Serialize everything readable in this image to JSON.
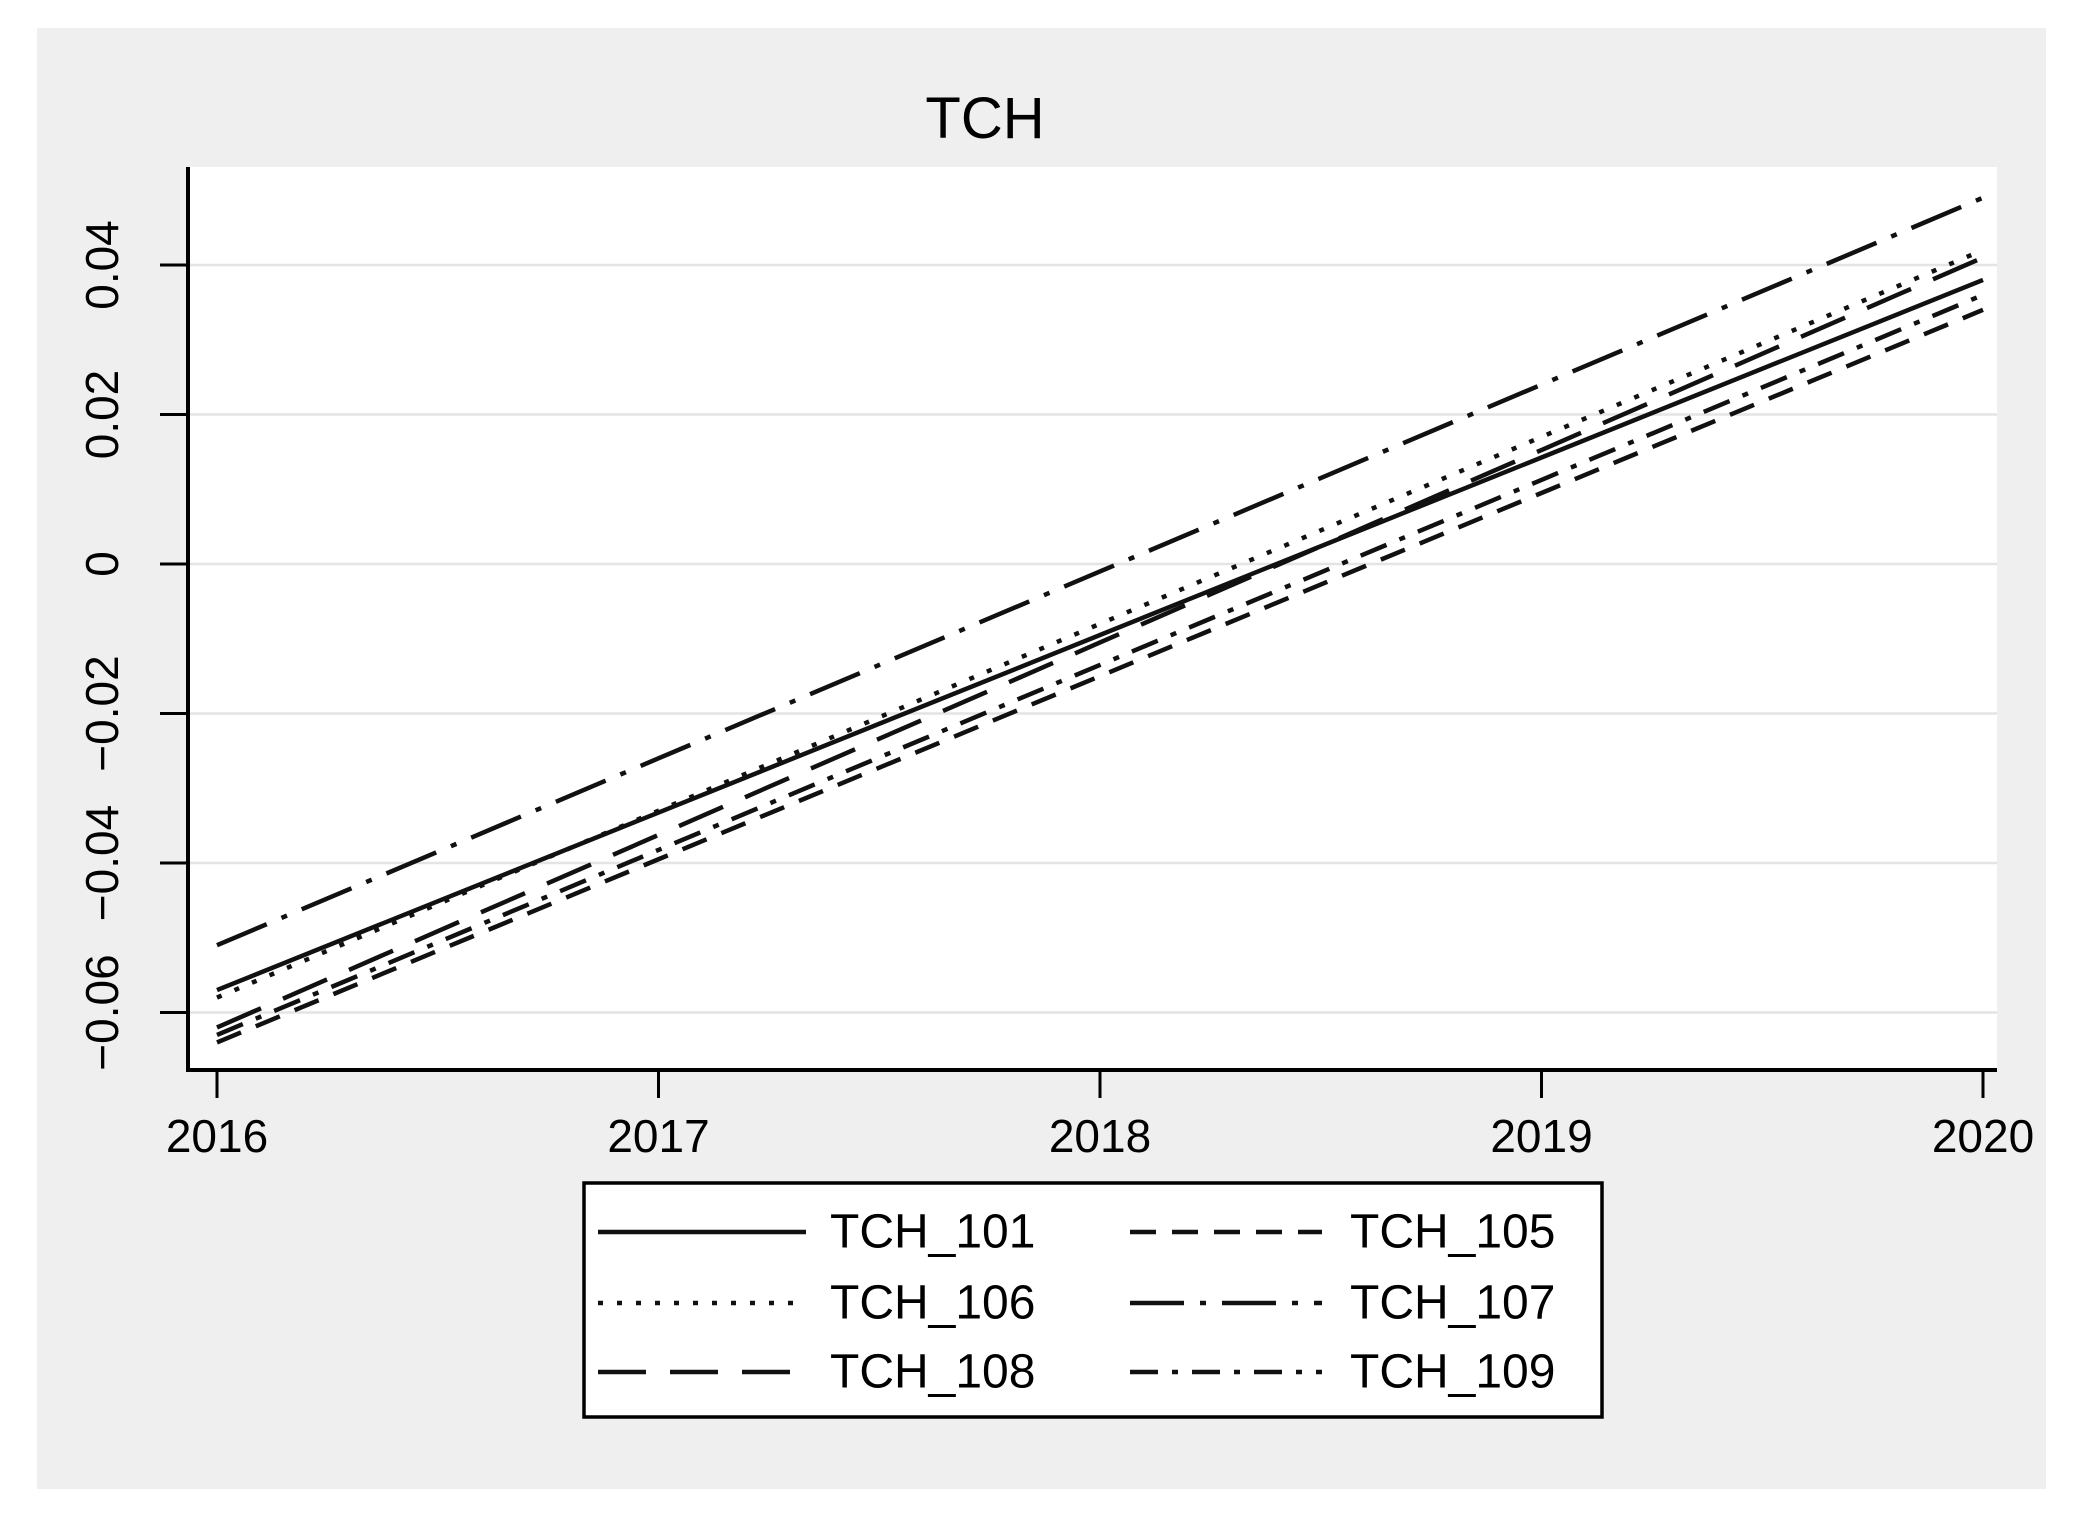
{
  "title": "TCH",
  "colors": {
    "canvas_bg": "#ffffff",
    "panel_bg": "#efefef",
    "plot_bg": "#ffffff",
    "gridline": "#e4e4e4",
    "axis": "#000000",
    "line": "#111111",
    "text": "#000000",
    "legend_bg": "#ffffff",
    "legend_border": "#000000"
  },
  "chart_data": {
    "type": "line",
    "title": "TCH",
    "xlabel": "",
    "ylabel": "",
    "x": [
      2016,
      2017,
      2018,
      2019,
      2020
    ],
    "x_tick_labels": [
      "2016",
      "2017",
      "2018",
      "2019",
      "2020"
    ],
    "xlim": [
      2016,
      2020
    ],
    "y_tick_values": [
      0.04,
      0.02,
      0,
      -0.02,
      -0.04,
      -0.06
    ],
    "y_tick_labels": [
      "0.04",
      "0.02",
      "0",
      "−0.02",
      "−0.04",
      "−0.06"
    ],
    "ylim": [
      -0.0677,
      0.0531
    ],
    "grid": "horizontal",
    "legend_position": "bottom",
    "series": [
      {
        "name": "TCH_101",
        "style": "solid",
        "values": [
          -0.057,
          -0.03325,
          -0.0095,
          0.01425,
          0.038
        ]
      },
      {
        "name": "TCH_105",
        "style": "dash",
        "values": [
          -0.064,
          -0.0395,
          -0.015,
          0.0095,
          0.034
        ]
      },
      {
        "name": "TCH_106",
        "style": "dot",
        "values": [
          -0.058,
          -0.033,
          -0.008,
          0.017,
          0.042
        ]
      },
      {
        "name": "TCH_107",
        "style": "longdash-dot",
        "values": [
          -0.051,
          -0.026,
          -0.001,
          0.024,
          0.049
        ]
      },
      {
        "name": "TCH_108",
        "style": "longdash",
        "values": [
          -0.062,
          -0.03625,
          -0.0105,
          0.01525,
          0.041
        ]
      },
      {
        "name": "TCH_109",
        "style": "dash-dot",
        "values": [
          -0.063,
          -0.03825,
          -0.0135,
          0.01125,
          0.036
        ]
      }
    ],
    "legend_order": [
      "TCH_101",
      "TCH_105",
      "TCH_106",
      "TCH_107",
      "TCH_108",
      "TCH_109"
    ]
  }
}
